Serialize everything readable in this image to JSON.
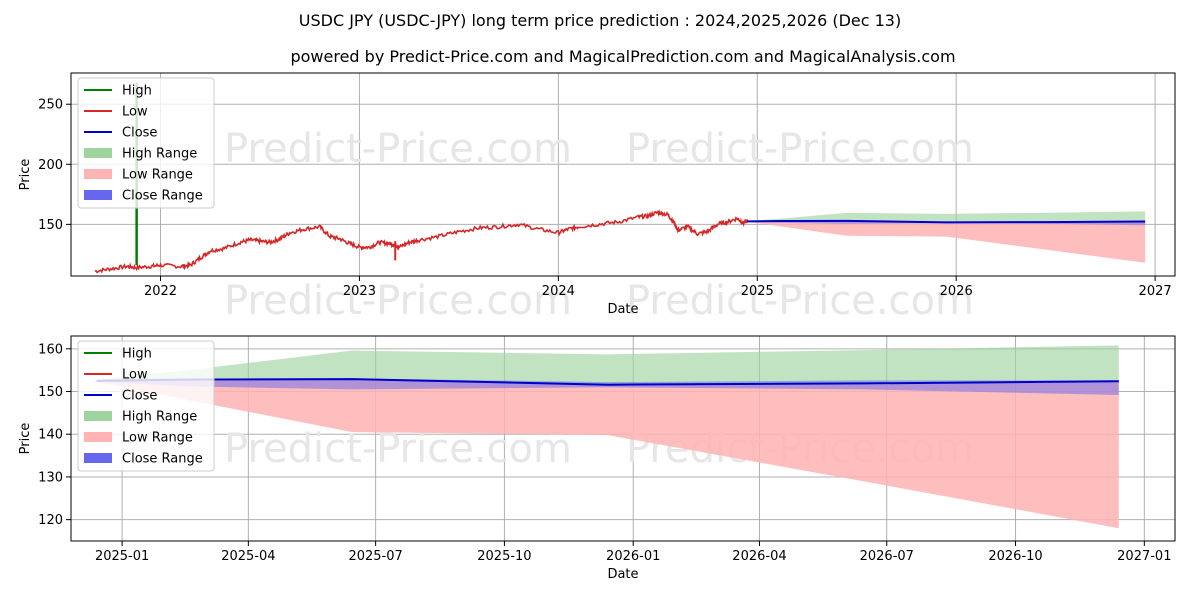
{
  "title": "USDC JPY (USDC-JPY) long term price prediction : 2024,2025,2026 (Dec 13)",
  "subtitle": "powered by Predict-Price.com and MagicalPrediction.com and MagicalAnalysis.com",
  "watermark": "Predict-Price.com",
  "colors": {
    "high": "#008000",
    "low": "#d62728",
    "close": "#0000cc",
    "high_range": "#9fd49f",
    "low_range": "#ffb3b3",
    "close_range": "#6666ee",
    "grid": "#b0b0b0",
    "watermark": "#e6e6e6"
  },
  "chart_data": [
    {
      "type": "line",
      "name": "history",
      "xlabel": "Date",
      "ylabel": "Price",
      "xlim": [
        2021.55,
        2027.1
      ],
      "ylim": [
        107,
        276
      ],
      "xticks": [
        {
          "v": 2022,
          "label": "2022"
        },
        {
          "v": 2023,
          "label": "2023"
        },
        {
          "v": 2024,
          "label": "2024"
        },
        {
          "v": 2025,
          "label": "2025"
        },
        {
          "v": 2026,
          "label": "2026"
        },
        {
          "v": 2027,
          "label": "2027"
        }
      ],
      "yticks": [
        {
          "v": 150,
          "label": "150"
        },
        {
          "v": 200,
          "label": "200"
        },
        {
          "v": 250,
          "label": "250"
        }
      ],
      "grid": true,
      "legend": [
        "High",
        "Low",
        "Close",
        "High Range",
        "Low Range",
        "Close Range"
      ],
      "history": {
        "x": [
          2021.67,
          2021.75,
          2021.83,
          2021.88,
          2021.95,
          2022.0,
          2022.1,
          2022.15,
          2022.2,
          2022.25,
          2022.32,
          2022.4,
          2022.45,
          2022.5,
          2022.55,
          2022.6,
          2022.65,
          2022.72,
          2022.8,
          2022.85,
          2022.9,
          2022.95,
          2023.0,
          2023.05,
          2023.1,
          2023.15,
          2023.18,
          2023.2,
          2023.25,
          2023.3,
          2023.4,
          2023.5,
          2023.6,
          2023.7,
          2023.8,
          2023.9,
          2024.0,
          2024.05,
          2024.1,
          2024.2,
          2024.3,
          2024.4,
          2024.45,
          2024.5,
          2024.55,
          2024.58,
          2024.6,
          2024.65,
          2024.7,
          2024.75,
          2024.8,
          2024.85,
          2024.9,
          2024.93,
          2024.95
        ],
        "values": [
          111,
          113,
          115,
          114,
          115,
          116,
          115,
          116,
          122,
          128,
          130,
          135,
          137,
          136,
          135,
          138,
          143,
          146,
          148,
          140,
          138,
          134,
          131,
          131,
          135,
          134,
          133,
          131,
          135,
          137,
          140,
          144,
          147,
          148,
          150,
          146,
          143,
          146,
          148,
          150,
          152,
          156,
          157,
          160,
          158,
          152,
          145,
          148,
          142,
          144,
          150,
          152,
          155,
          151,
          153
        ]
      },
      "spike": {
        "x": 2021.88,
        "top": 268,
        "bottom": 116
      },
      "dip": {
        "x": 2023.18,
        "low": 120
      }
    },
    {
      "type": "area",
      "name": "forecast",
      "xlabel": "Date",
      "ylabel": "Price",
      "xlim": [
        2024.9,
        2027.06
      ],
      "ylim": [
        115,
        163
      ],
      "xticks": [
        {
          "v": 2025.0,
          "label": "2025-01"
        },
        {
          "v": 2025.247,
          "label": "2025-04"
        },
        {
          "v": 2025.496,
          "label": "2025-07"
        },
        {
          "v": 2025.748,
          "label": "2025-10"
        },
        {
          "v": 2026.0,
          "label": "2026-01"
        },
        {
          "v": 2026.247,
          "label": "2026-04"
        },
        {
          "v": 2026.496,
          "label": "2026-07"
        },
        {
          "v": 2026.748,
          "label": "2026-10"
        },
        {
          "v": 2027.0,
          "label": "2027-01"
        }
      ],
      "yticks": [
        {
          "v": 120,
          "label": "120"
        },
        {
          "v": 130,
          "label": "130"
        },
        {
          "v": 140,
          "label": "140"
        },
        {
          "v": 150,
          "label": "150"
        },
        {
          "v": 160,
          "label": "160"
        }
      ],
      "grid": true,
      "legend": [
        "High",
        "Low",
        "Close",
        "High Range",
        "Low Range",
        "Close Range"
      ],
      "x": [
        2024.95,
        2025.13,
        2025.45,
        2025.95,
        2026.45,
        2026.95
      ],
      "close": [
        152.5,
        152.8,
        152.9,
        151.6,
        151.9,
        152.4
      ],
      "high_range": [
        152.8,
        155,
        159.6,
        158.7,
        159.7,
        160.8
      ],
      "low_range": [
        152.3,
        148,
        140.5,
        139.8,
        129,
        118
      ],
      "close_range_upper": [
        152.8,
        153,
        153.1,
        152.2,
        152.6,
        152.6
      ],
      "close_range_lower": [
        152.4,
        151.2,
        150.5,
        151.0,
        150.5,
        149.2
      ]
    }
  ]
}
